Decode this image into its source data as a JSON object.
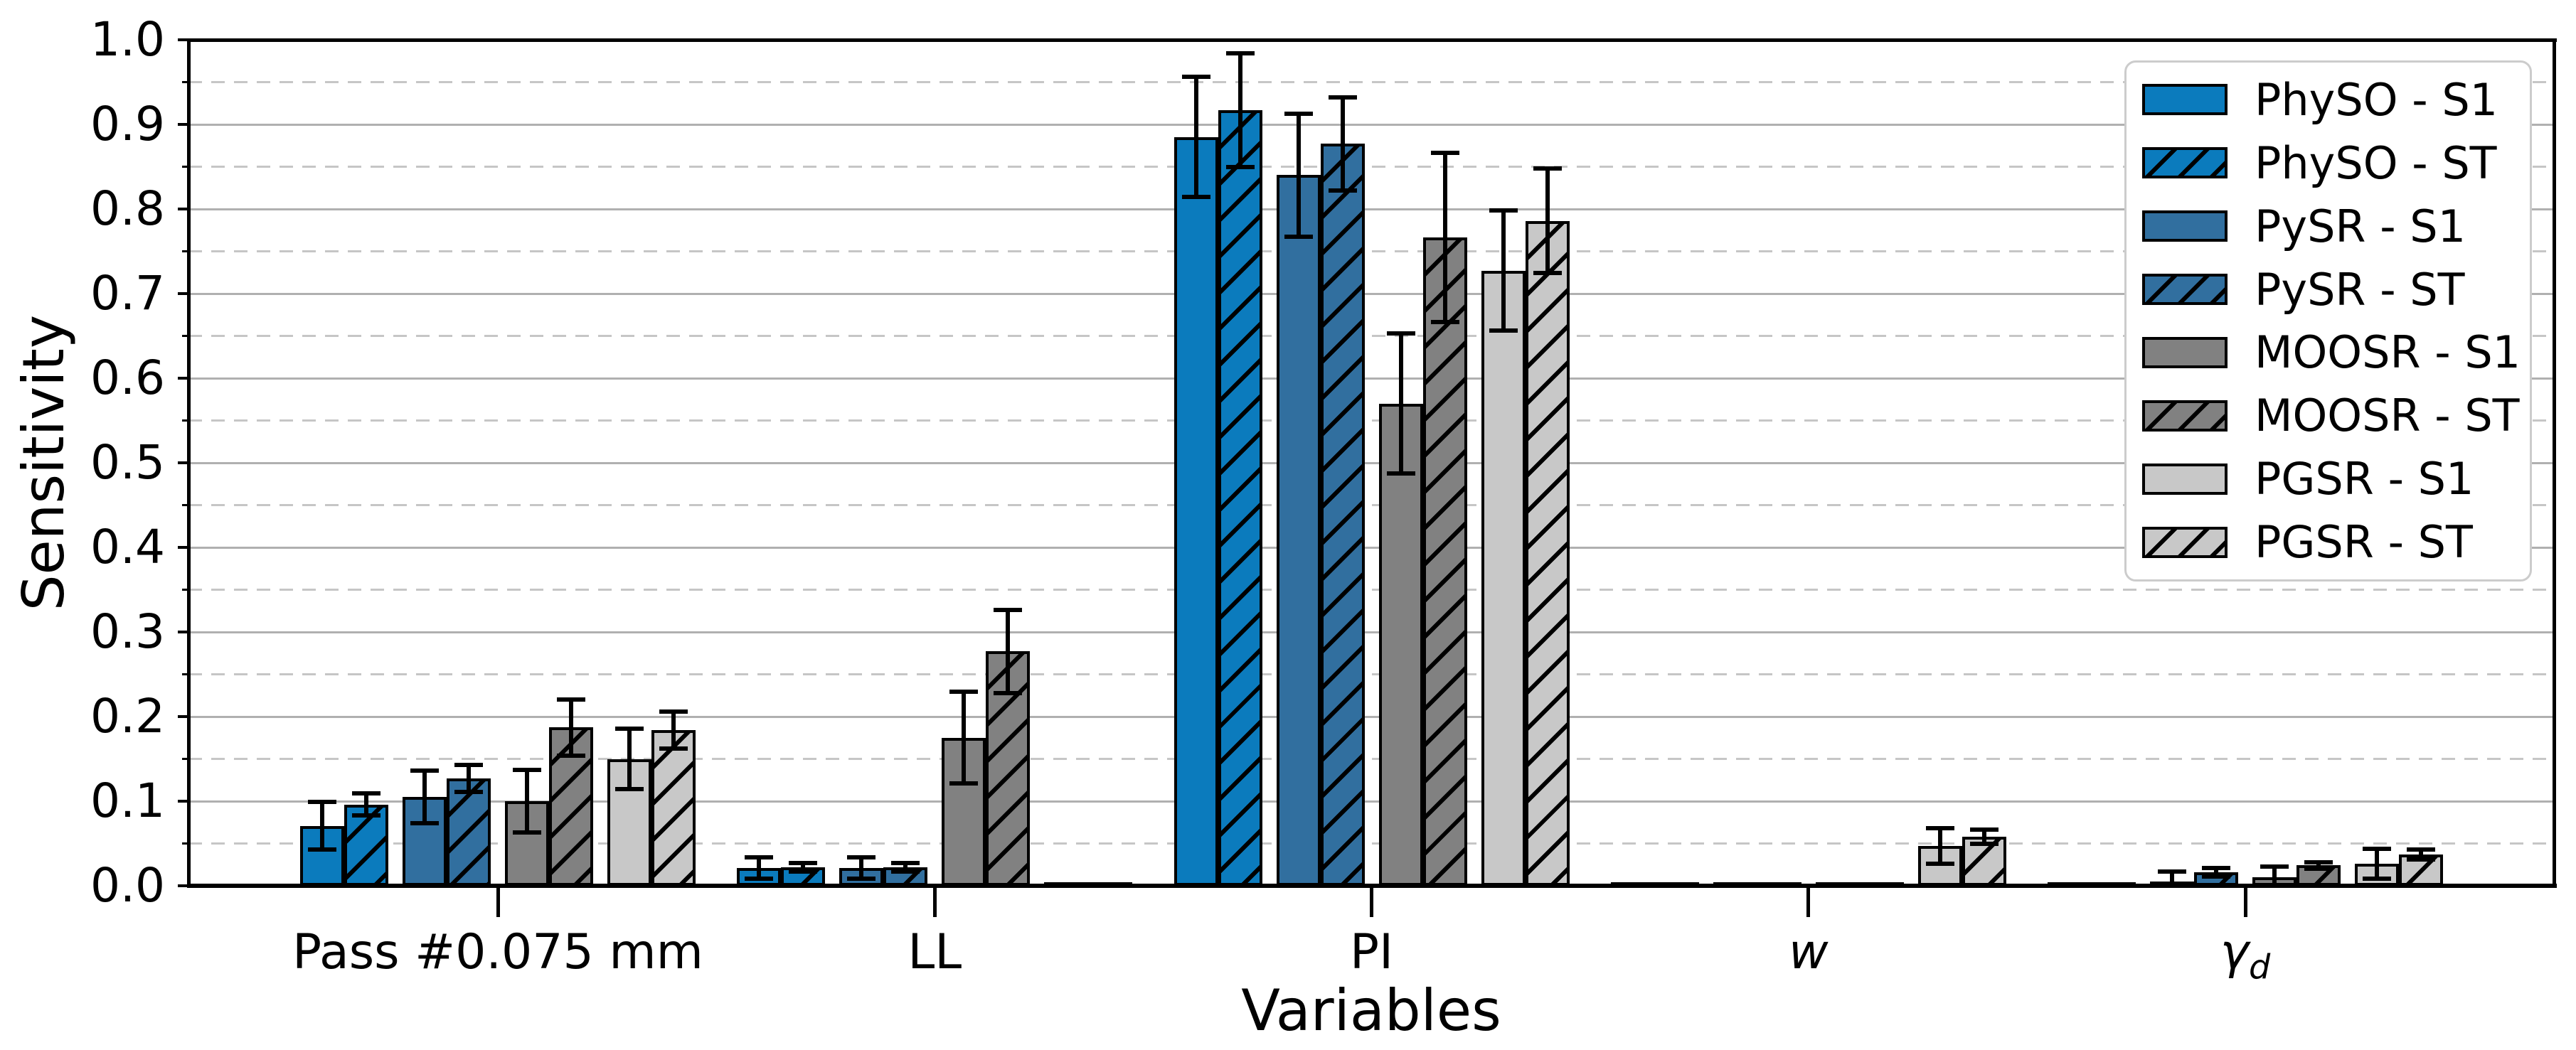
{
  "chart_data": {
    "type": "bar",
    "title": "",
    "xlabel": "Variables",
    "ylabel": "Sensitivity",
    "categories": [
      "Pass #0.075 mm",
      "LL",
      "PI",
      "w",
      "γ_d"
    ],
    "y_ticks": [
      "0.0",
      "0.1",
      "0.2",
      "0.3",
      "0.4",
      "0.5",
      "0.6",
      "0.7",
      "0.8",
      "0.9",
      "1.0"
    ],
    "ylim": [
      0.0,
      1.0
    ],
    "y_major_step": 0.1,
    "y_minor_step": 0.05,
    "grid": {
      "major": "solid",
      "minor": "dashed",
      "major_color": "#b0b0b0",
      "minor_color": "#c6c6c6"
    },
    "legend_position": "upper-right",
    "bar_edge_color": "#000000",
    "error_bar_color": "#000000",
    "series": [
      {
        "name": "PhySO - S1",
        "color": "#0b7bbd",
        "hatch": false,
        "values": [
          0.071,
          0.021,
          0.885,
          0.002,
          0.002
        ],
        "errors": [
          0.028,
          0.013,
          0.071,
          0,
          0
        ]
      },
      {
        "name": "PhySO - ST",
        "color": "#0b7bbd",
        "hatch": true,
        "values": [
          0.096,
          0.022,
          0.917,
          0.002,
          0.003
        ],
        "errors": [
          0.013,
          0.005,
          0.067,
          0,
          0
        ]
      },
      {
        "name": "PySR - S1",
        "color": "#316f9f",
        "hatch": false,
        "values": [
          0.105,
          0.021,
          0.84,
          0.002,
          0.005
        ],
        "errors": [
          0.031,
          0.013,
          0.073,
          0,
          0.012
        ]
      },
      {
        "name": "PySR - ST",
        "color": "#316f9f",
        "hatch": true,
        "values": [
          0.127,
          0.022,
          0.877,
          0.002,
          0.016
        ],
        "errors": [
          0.016,
          0.005,
          0.055,
          0,
          0.005
        ]
      },
      {
        "name": "MOOSR - S1",
        "color": "#818181",
        "hatch": false,
        "values": [
          0.1,
          0.175,
          0.57,
          0.002,
          0.01
        ],
        "errors": [
          0.037,
          0.054,
          0.083,
          0,
          0.013
        ]
      },
      {
        "name": "MOOSR - ST",
        "color": "#818181",
        "hatch": true,
        "values": [
          0.187,
          0.277,
          0.766,
          0.003,
          0.024
        ],
        "errors": [
          0.033,
          0.049,
          0.1,
          0,
          0.004
        ]
      },
      {
        "name": "PGSR - S1",
        "color": "#c8c8c8",
        "hatch": false,
        "values": [
          0.15,
          0.004,
          0.727,
          0.047,
          0.026
        ],
        "errors": [
          0.036,
          0,
          0.071,
          0.021,
          0.018
        ]
      },
      {
        "name": "PGSR - ST",
        "color": "#c8c8c8",
        "hatch": true,
        "values": [
          0.184,
          0.004,
          0.786,
          0.058,
          0.037
        ],
        "errors": [
          0.022,
          0,
          0.062,
          0.008,
          0.006
        ]
      }
    ]
  }
}
